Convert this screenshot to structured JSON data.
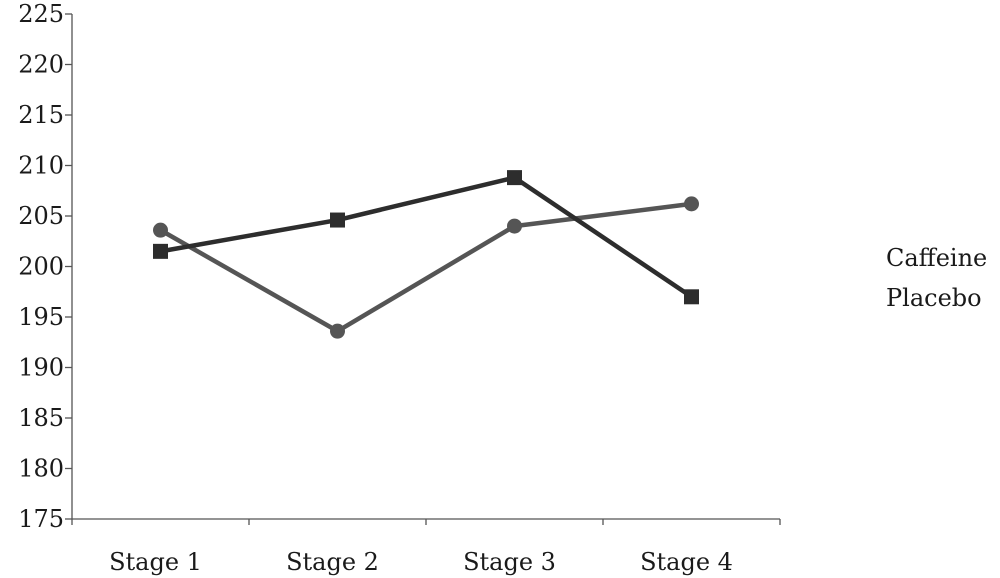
{
  "chart_data": {
    "type": "line",
    "categories": [
      "Stage 1",
      "Stage 2",
      "Stage 3",
      "Stage 4"
    ],
    "series": [
      {
        "name": "Caffeine",
        "marker": "square",
        "color": "#2d2d2d",
        "values": [
          201.5,
          204.6,
          208.8,
          197.0
        ]
      },
      {
        "name": "Placebo",
        "marker": "circle",
        "color": "#555555",
        "values": [
          203.6,
          193.6,
          204.0,
          206.2
        ]
      }
    ],
    "yticks": [
      "225",
      "220",
      "215",
      "210",
      "205",
      "200",
      "195",
      "190",
      "185",
      "180",
      "175"
    ],
    "ylim": [
      175,
      225
    ],
    "title": "",
    "xlabel": "",
    "ylabel": "",
    "grid": false,
    "legend_position": "right"
  }
}
